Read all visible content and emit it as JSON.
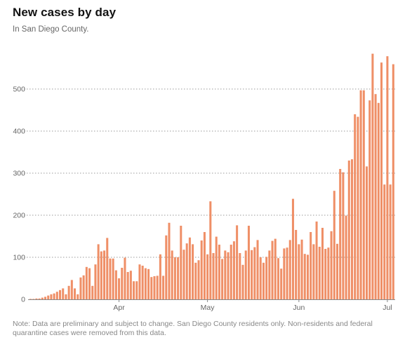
{
  "title": "New cases by day",
  "subtitle": "In San Diego County.",
  "note": "Note: Data are preliminary and subject to change. San Diego County residents only. Non-residents and federal quarantine cases were removed from this data.",
  "colors": {
    "bar": "#ef8f67",
    "grid": "#999999",
    "text": "#121212",
    "muted": "#888888"
  },
  "chart_data": {
    "type": "bar",
    "title": "New cases by day",
    "subtitle": "In San Diego County.",
    "xlabel": "",
    "ylabel": "",
    "ylim": [
      0,
      600
    ],
    "yticks": [
      0,
      100,
      200,
      300,
      400,
      500
    ],
    "grid": true,
    "xtick_labels": [
      {
        "label": "Apr",
        "day_index": 30
      },
      {
        "label": "May",
        "day_index": 60
      },
      {
        "label": "Jun",
        "day_index": 91
      },
      {
        "label": "Jul",
        "day_index": 121
      }
    ],
    "values": [
      1,
      1,
      2,
      2,
      4,
      6,
      9,
      12,
      14,
      18,
      22,
      26,
      12,
      32,
      46,
      26,
      12,
      52,
      57,
      77,
      74,
      32,
      83,
      131,
      114,
      116,
      146,
      97,
      97,
      69,
      50,
      75,
      99,
      65,
      68,
      43,
      43,
      83,
      80,
      74,
      72,
      53,
      55,
      56,
      107,
      56,
      152,
      182,
      116,
      100,
      100,
      175,
      118,
      133,
      147,
      131,
      87,
      93,
      140,
      160,
      107,
      233,
      110,
      149,
      130,
      96,
      116,
      112,
      130,
      138,
      176,
      110,
      82,
      116,
      175,
      117,
      124,
      141,
      100,
      87,
      101,
      116,
      139,
      144,
      98,
      73,
      121,
      123,
      141,
      239,
      165,
      131,
      142,
      108,
      106,
      160,
      131,
      185,
      125,
      170,
      120,
      123,
      162,
      258,
      132,
      310,
      302,
      199,
      330,
      333,
      440,
      434,
      497,
      497,
      316,
      473,
      584,
      488,
      467,
      563,
      273,
      578,
      273,
      559
    ]
  }
}
